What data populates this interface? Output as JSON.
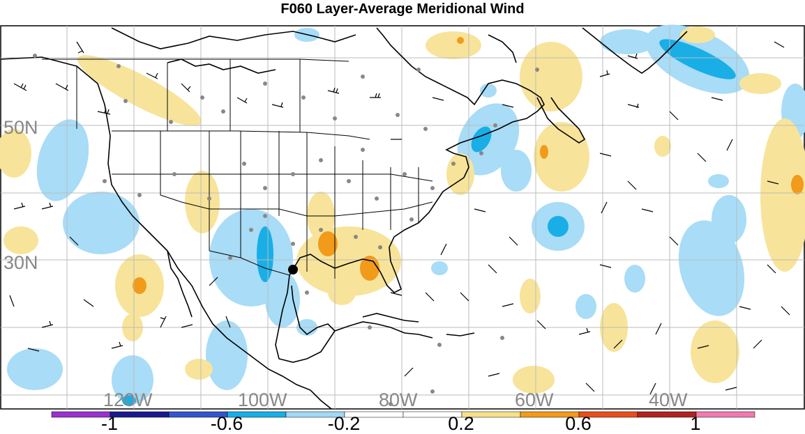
{
  "title": "F060 Layer-Average Meridional Wind",
  "lat_labels": [
    "50N",
    "30N"
  ],
  "lon_labels": [
    "120W",
    "100W",
    "80W",
    "60W",
    "40W"
  ],
  "colorbar": {
    "colors": [
      "#9b30ce",
      "#1a1a8c",
      "#3355cc",
      "#19aee6",
      "#a0d8f5",
      "#ffffff",
      "#ffffff",
      "#f7e08a",
      "#f29a1a",
      "#e84e1a",
      "#b02222",
      "#f07ab0"
    ],
    "labels": [
      "-1",
      "-0.6",
      "-0.2",
      "0.2",
      "0.6",
      "1"
    ]
  },
  "colors": {
    "negative_light": "#a8dcf7",
    "negative_mid": "#19aee6",
    "positive_light": "#f7e49a",
    "positive_mid": "#f29a1a",
    "grid": "#bbbbbb",
    "coast": "#000000",
    "station": "#888888"
  }
}
